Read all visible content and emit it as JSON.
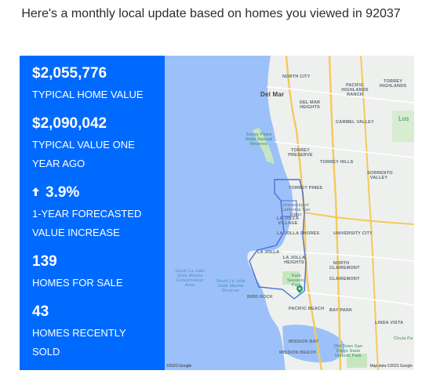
{
  "headline": "Here's a monthly local update based on homes you viewed in 92037",
  "stats": [
    {
      "value": "$2,055,776",
      "label": "TYPICAL HOME VALUE"
    },
    {
      "value": "$2,090,042",
      "label": "TYPICAL VALUE ONE YEAR AGO"
    },
    {
      "value": "3.9%",
      "label": "1-YEAR FORECASTED VALUE INCREASE",
      "icon": "up-arrow-icon"
    },
    {
      "value": "139",
      "label": "HOMES FOR SALE"
    },
    {
      "value": "43",
      "label": "HOMES RECENTLY SOLD"
    }
  ],
  "map": {
    "labels": {
      "north_city": "NORTH CITY",
      "del_mar": "Del Mar",
      "pacific_highlands": "PACIFIC HIGHLANDS RANCH",
      "torrey_highlands": "TORREY HIGHLANDS",
      "del_mar_heights": "DEL MAR HEIGHTS",
      "carmel_valley": "CARMEL VALLEY",
      "los": "Los",
      "torrey_pines_reserve": "Torrey Pines State Natural Reserve",
      "torrey_preserve": "TORREY PRESERVE",
      "torrey_hills": "TORREY HILLS",
      "sorrento_valley": "SORRENTO VALLEY",
      "torrey_pines": "TORREY PINES",
      "ucsd": "University of California San Diego",
      "la_jolla_village": "LA JOLLA VILLAGE",
      "la_jolla_shores": "LA JOLLA SHORES",
      "university_city": "UNIVERSITY CITY",
      "la_jolla": "LA JOLLA",
      "la_jolla_heights": "LA JOLLA HEIGHTS",
      "north_clairemont": "NORTH CLAIREMONT",
      "conservation_area": "South La Jolla State Marine Conservation Area",
      "marine_reserve": "South La Jolla State Marine Reserve",
      "kate_sessions": "Kate Sessions Park",
      "bird_rock": "BIRD ROCK",
      "pacific_beach": "PACIFIC BEACH",
      "clairemont": "CLAIREMONT",
      "bay_park": "BAY PARK",
      "linda_vista": "LINDA VISTA",
      "mission_bay": "MISSION BAY",
      "mission_beach": "MISSION BEACH",
      "old_town": "Old Town San Diego State Historic Park",
      "chula": "Chula Pa"
    },
    "copyright": "©2023 Google",
    "map_data": "Map data ©2023 Google"
  }
}
